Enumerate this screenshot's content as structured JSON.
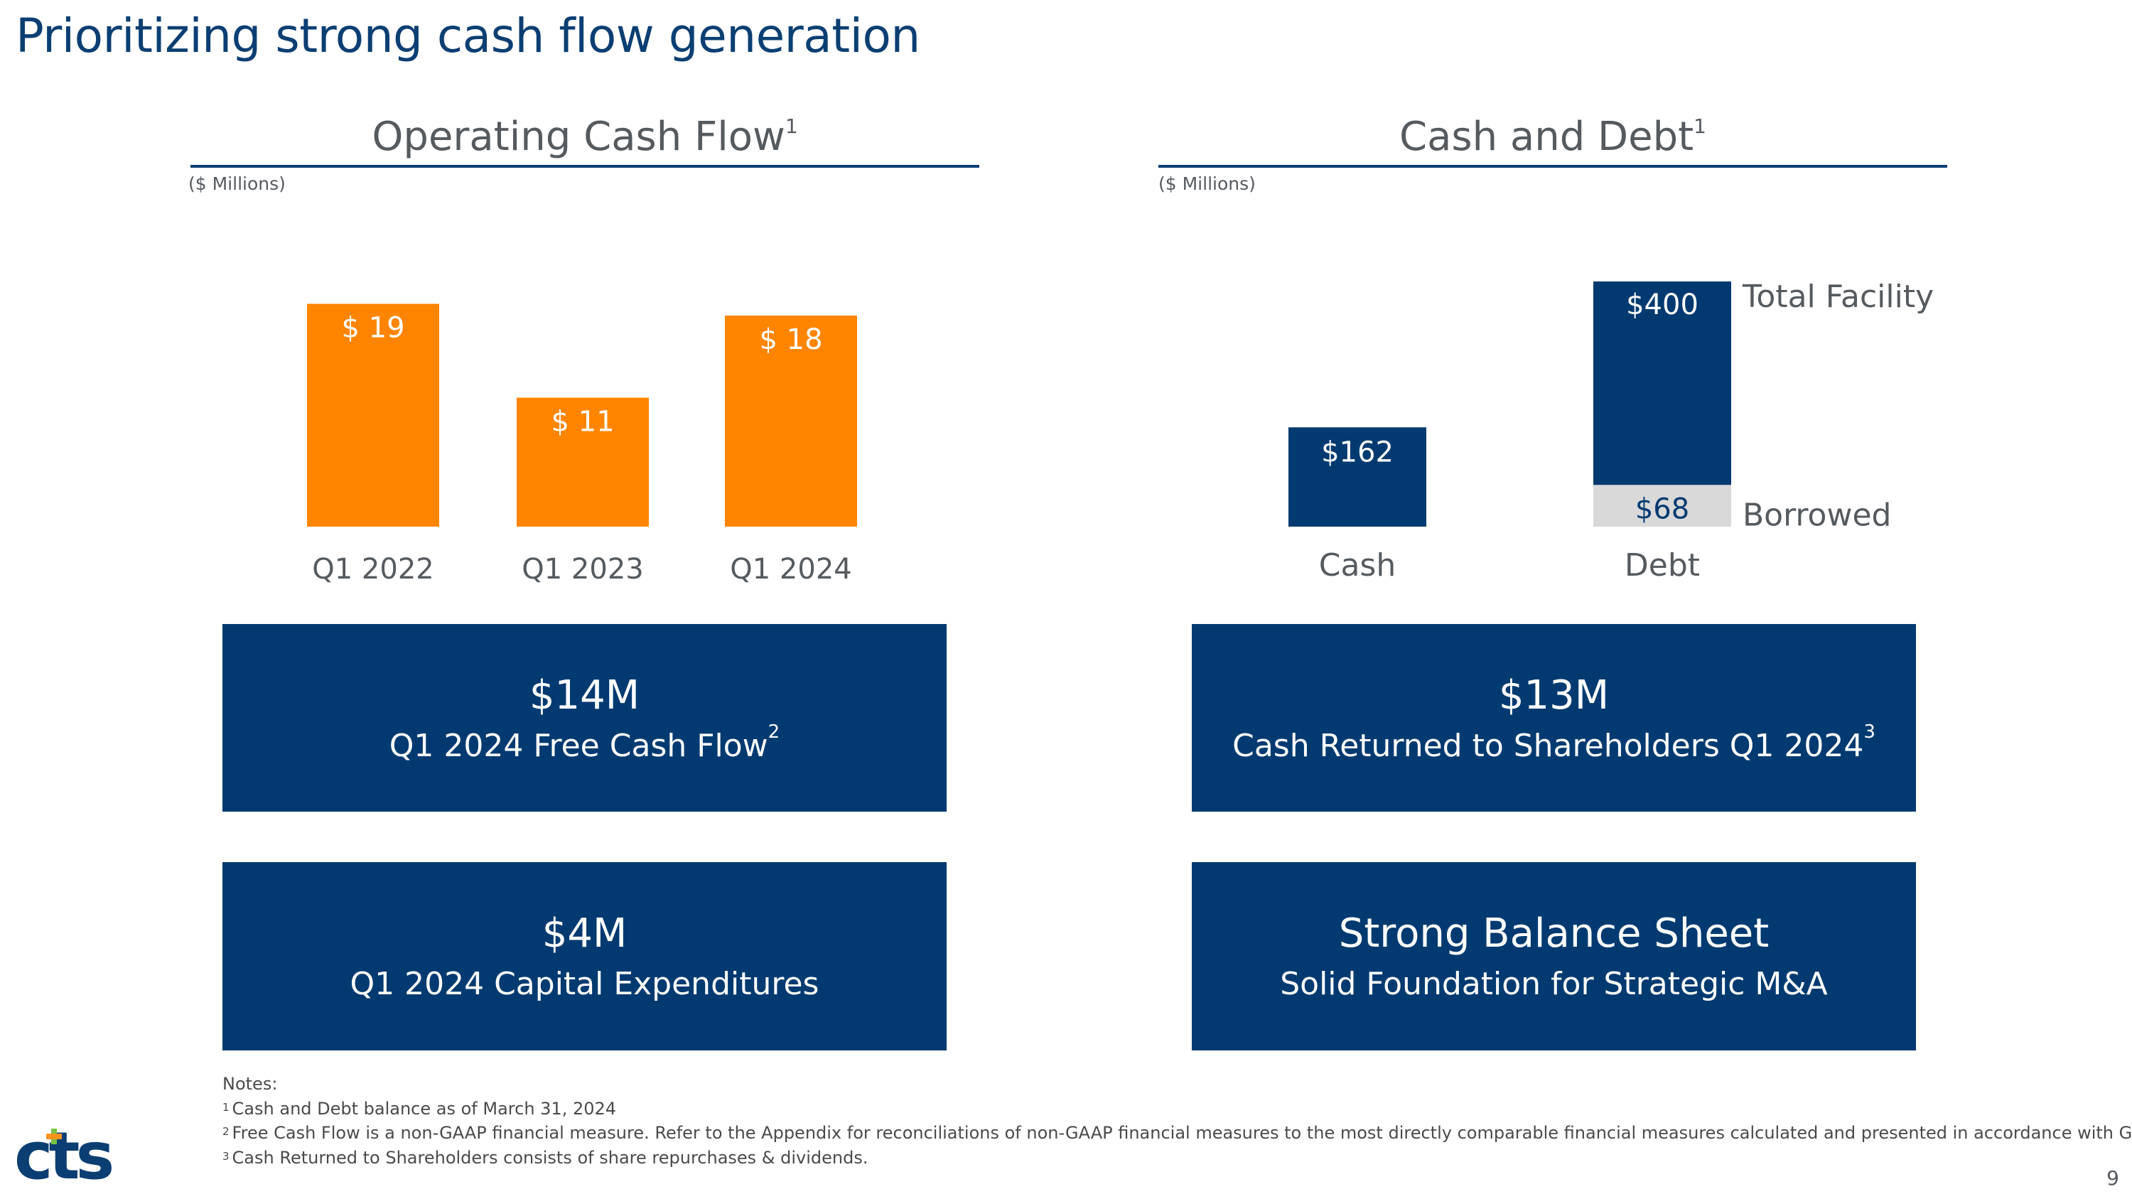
{
  "slide": {
    "title": "Prioritizing strong cash flow generation",
    "page_number": "9"
  },
  "colors": {
    "navy": "#003a70",
    "orange": "#ff8500",
    "light_gray": "#d9d9d9",
    "logo_green": "#7ac142",
    "logo_orange": "#f7941d"
  },
  "chart_data": [
    {
      "type": "bar",
      "title": "Operating Cash Flow",
      "title_note": "1",
      "units_label": "($ Millions)",
      "categories": [
        "Q1 2022",
        "Q1 2023",
        "Q1 2024"
      ],
      "values": [
        19,
        11,
        18
      ],
      "data_labels": [
        "$ 19",
        "$ 11",
        "$ 18"
      ],
      "ylim": [
        0,
        22
      ],
      "grid": false
    },
    {
      "type": "bar",
      "title": "Cash and Debt",
      "title_note": "1",
      "units_label": "($ Millions)",
      "categories": [
        "Cash",
        "Debt"
      ],
      "series": [
        {
          "name": "Cash",
          "values": [
            162,
            null
          ]
        },
        {
          "name": "Borrowed",
          "values": [
            null,
            68
          ]
        },
        {
          "name": "Total Facility",
          "values": [
            null,
            400
          ]
        }
      ],
      "data_labels": {
        "cash": "$162",
        "borrowed": "$68",
        "total_facility": "$400"
      },
      "series_labels": {
        "total_facility": "Total Facility",
        "borrowed": "Borrowed"
      },
      "ylim": [
        0,
        400
      ],
      "grid": false
    }
  ],
  "panels": [
    {
      "value": "$14M",
      "label": "Q1 2024 Free Cash Flow",
      "note": "2"
    },
    {
      "value": "$13M",
      "label": "Cash Returned to Shareholders Q1 2024",
      "note": "3"
    },
    {
      "value": "$4M",
      "label": "Q1 2024 Capital Expenditures",
      "note": ""
    },
    {
      "value": "Strong Balance Sheet",
      "label": "Solid Foundation for Strategic M&A",
      "note": ""
    }
  ],
  "notes": {
    "heading": "Notes:",
    "items": [
      {
        "num": "1",
        "text": "Cash and Debt balance as of March 31, 2024"
      },
      {
        "num": "2",
        "text": "Free Cash Flow is a non-GAAP financial measure. Refer to the Appendix for reconciliations of non-GAAP financial measures to the most directly comparable financial measures calculated and presented in accordance with GAAP."
      },
      {
        "num": "3",
        "text": "Cash Returned to Shareholders consists of share repurchases & dividends."
      }
    ]
  },
  "logo": {
    "text": "cts"
  }
}
